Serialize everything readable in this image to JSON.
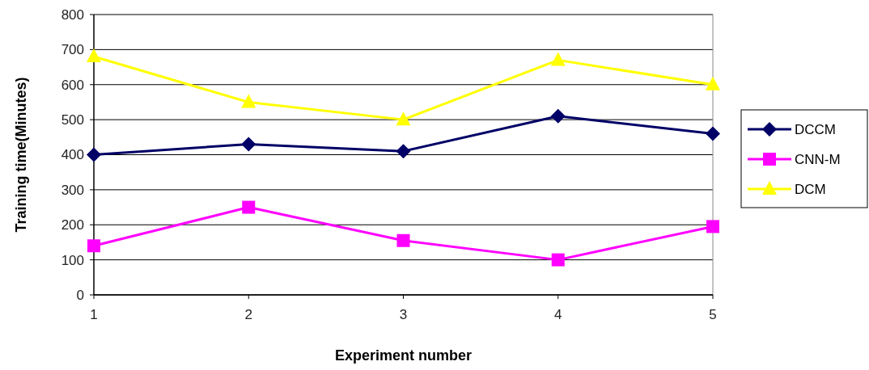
{
  "chart_data": {
    "type": "line",
    "xlabel": "Experiment number",
    "ylabel": "Training time(Minutes)",
    "x": [
      1,
      2,
      3,
      4,
      5
    ],
    "xlim": [
      1,
      5
    ],
    "xticks": [
      1,
      2,
      3,
      4,
      5
    ],
    "ylim": [
      0,
      800
    ],
    "yticks": [
      0,
      100,
      200,
      300,
      400,
      500,
      600,
      700,
      800
    ],
    "grid": "y",
    "legend": "right",
    "series": [
      {
        "name": "DCCM",
        "color": "#000066",
        "marker": "diamond",
        "values": [
          400,
          430,
          410,
          510,
          460
        ]
      },
      {
        "name": "CNN-M",
        "color": "#ff00ff",
        "marker": "square",
        "values": [
          140,
          250,
          155,
          100,
          195
        ]
      },
      {
        "name": "DCM",
        "color": "#ffff00",
        "marker": "triangle",
        "values": [
          680,
          550,
          500,
          670,
          600
        ]
      }
    ]
  }
}
